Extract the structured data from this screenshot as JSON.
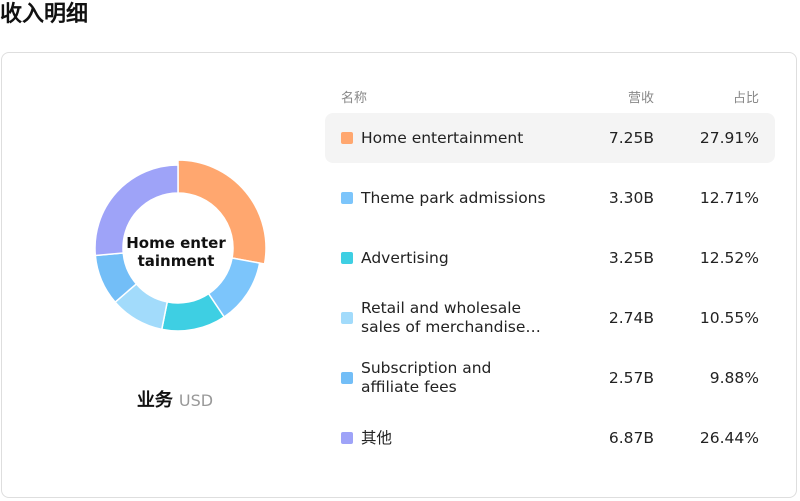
{
  "chart_data": {
    "type": "pie",
    "donut": true,
    "title": "收入明细",
    "category_header": "名称",
    "center_label": "Home entertainment",
    "subtitle": "业务",
    "unit": "USD",
    "categories": [
      "Home entertainment",
      "Theme park admissions",
      "Advertising",
      "Retail and wholesale sales of merchandise…",
      "Subscription and affiliate fees",
      "其他"
    ],
    "colors": [
      "#ffa76f",
      "#7cc5fb",
      "#3ecfe3",
      "#a2dbfb",
      "#73bef7",
      "#9ea3f8"
    ],
    "series": [
      {
        "name": "营收",
        "values": [
          7250000000,
          3300000000,
          3250000000,
          2740000000,
          2570000000,
          6870000000
        ],
        "value_labels": [
          "7.25B",
          "3.30B",
          "3.25B",
          "2.74B",
          "2.57B",
          "6.87B"
        ]
      },
      {
        "name": "占比",
        "values": [
          27.91,
          12.71,
          12.52,
          10.55,
          9.88,
          26.44
        ],
        "value_labels": [
          "27.91%",
          "12.71%",
          "12.52%",
          "10.55%",
          "9.88%",
          "26.44%"
        ]
      }
    ]
  }
}
